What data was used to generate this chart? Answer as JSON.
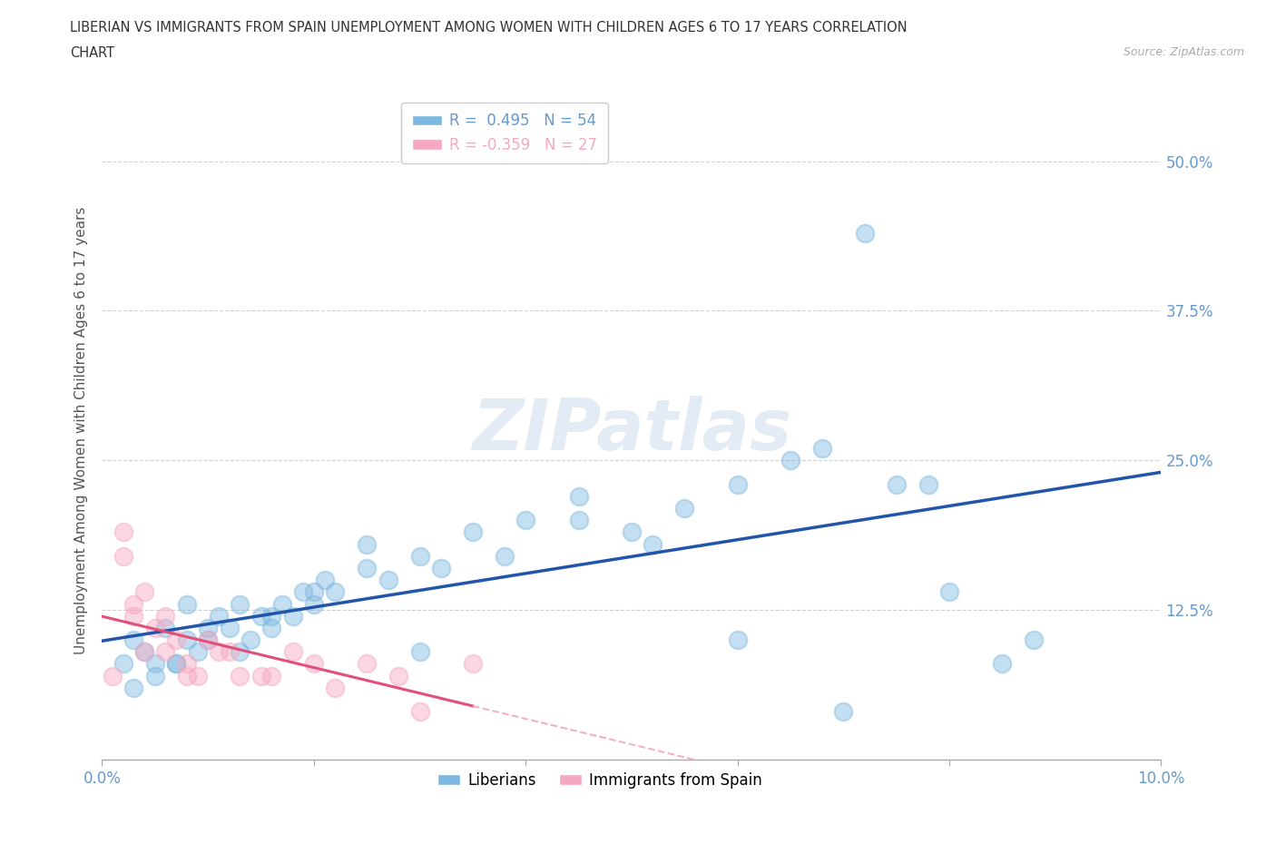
{
  "title_line1": "LIBERIAN VS IMMIGRANTS FROM SPAIN UNEMPLOYMENT AMONG WOMEN WITH CHILDREN AGES 6 TO 17 YEARS CORRELATION",
  "title_line2": "CHART",
  "source": "Source: ZipAtlas.com",
  "ylabel": "Unemployment Among Women with Children Ages 6 to 17 years",
  "legend_label1": "Liberians",
  "legend_label2": "Immigrants from Spain",
  "r1": 0.495,
  "n1": 54,
  "r2": -0.359,
  "n2": 27,
  "xlim": [
    0.0,
    0.1
  ],
  "ylim": [
    0.0,
    0.55
  ],
  "yticks": [
    0.0,
    0.125,
    0.25,
    0.375,
    0.5
  ],
  "ytick_labels": [
    "",
    "12.5%",
    "25.0%",
    "37.5%",
    "50.0%"
  ],
  "xticks": [
    0.0,
    0.02,
    0.04,
    0.06,
    0.08,
    0.1
  ],
  "xtick_labels": [
    "0.0%",
    "",
    "",
    "",
    "",
    "10.0%"
  ],
  "blue_color": "#7db8e0",
  "pink_color": "#f5a8bf",
  "blue_line_color": "#2255aa",
  "pink_line_color": "#e0507a",
  "pink_line_dashed_color": "#f0b0c8",
  "watermark": "ZIPatlas",
  "blue_scatter_x": [
    0.002,
    0.003,
    0.004,
    0.005,
    0.006,
    0.007,
    0.008,
    0.009,
    0.01,
    0.011,
    0.012,
    0.013,
    0.014,
    0.015,
    0.016,
    0.017,
    0.018,
    0.019,
    0.02,
    0.021,
    0.022,
    0.025,
    0.027,
    0.03,
    0.032,
    0.035,
    0.04,
    0.045,
    0.05,
    0.055,
    0.06,
    0.065,
    0.07,
    0.075,
    0.08,
    0.003,
    0.005,
    0.007,
    0.01,
    0.013,
    0.016,
    0.02,
    0.025,
    0.03,
    0.038,
    0.045,
    0.052,
    0.06,
    0.068,
    0.072,
    0.078,
    0.085,
    0.088,
    0.008
  ],
  "blue_scatter_y": [
    0.08,
    0.1,
    0.09,
    0.07,
    0.11,
    0.08,
    0.1,
    0.09,
    0.1,
    0.12,
    0.11,
    0.09,
    0.1,
    0.12,
    0.11,
    0.13,
    0.12,
    0.14,
    0.13,
    0.15,
    0.14,
    0.16,
    0.15,
    0.17,
    0.16,
    0.19,
    0.2,
    0.22,
    0.19,
    0.21,
    0.23,
    0.25,
    0.04,
    0.23,
    0.14,
    0.06,
    0.08,
    0.08,
    0.11,
    0.13,
    0.12,
    0.14,
    0.18,
    0.09,
    0.17,
    0.2,
    0.18,
    0.1,
    0.26,
    0.44,
    0.23,
    0.08,
    0.1,
    0.13
  ],
  "pink_scatter_x": [
    0.001,
    0.002,
    0.003,
    0.004,
    0.005,
    0.006,
    0.007,
    0.008,
    0.009,
    0.01,
    0.011,
    0.012,
    0.013,
    0.015,
    0.016,
    0.018,
    0.02,
    0.022,
    0.025,
    0.028,
    0.03,
    0.035,
    0.002,
    0.004,
    0.006,
    0.003,
    0.008
  ],
  "pink_scatter_y": [
    0.07,
    0.17,
    0.13,
    0.09,
    0.11,
    0.12,
    0.1,
    0.08,
    0.07,
    0.1,
    0.09,
    0.09,
    0.07,
    0.07,
    0.07,
    0.09,
    0.08,
    0.06,
    0.08,
    0.07,
    0.04,
    0.08,
    0.19,
    0.14,
    0.09,
    0.12,
    0.07
  ],
  "background_color": "#ffffff",
  "grid_color": "#cccccc",
  "title_color": "#333333",
  "axis_label_color": "#555555",
  "tick_label_color": "#6699cc",
  "right_tick_color": "#6699cc"
}
